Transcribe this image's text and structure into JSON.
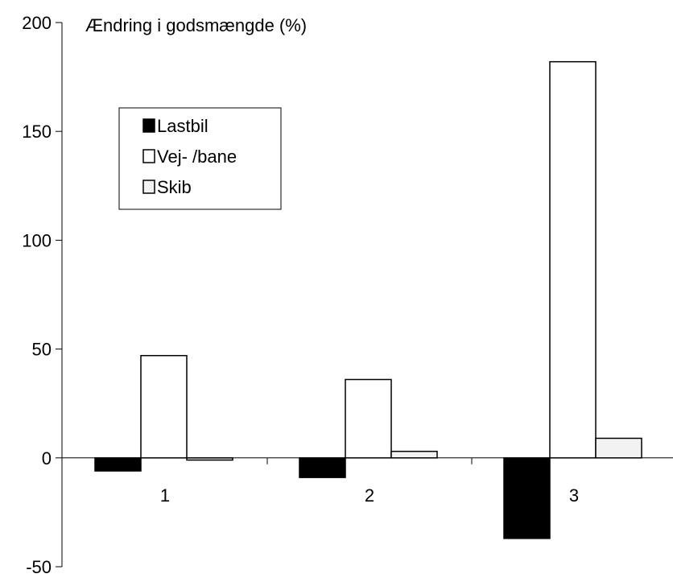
{
  "chart_data": {
    "type": "bar",
    "title": "Ændring i godsmængde (%)",
    "categories": [
      "1",
      "2",
      "3"
    ],
    "series": [
      {
        "name": "Lastbil",
        "values": [
          -6,
          -9,
          -37
        ],
        "color": "#000000"
      },
      {
        "name": "Vej- /bane",
        "values": [
          47,
          36,
          182
        ],
        "color": "#ffffff"
      },
      {
        "name": "Skib",
        "values": [
          -1,
          3,
          9
        ],
        "color": "#f2f2f2"
      }
    ],
    "ylim": [
      -50,
      200
    ],
    "yticks": [
      -50,
      0,
      50,
      100,
      150,
      200
    ],
    "ytick_labels": [
      "-50",
      "0",
      "50",
      "100",
      "150",
      "200"
    ],
    "legend_position": "upper-left",
    "grid": false
  }
}
